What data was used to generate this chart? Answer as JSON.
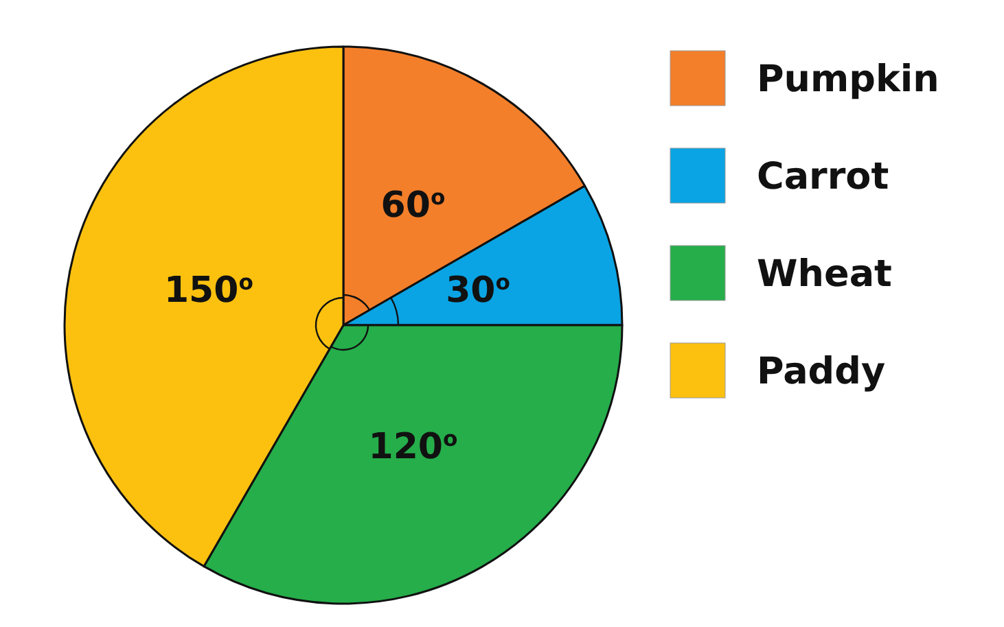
{
  "chart_data": {
    "type": "pie",
    "categories": [
      "Pumpkin",
      "Carrot",
      "Wheat",
      "Paddy"
    ],
    "values": [
      60,
      30,
      120,
      150
    ],
    "colors": [
      "#f47f2a",
      "#0aa4e4",
      "#25ae4a",
      "#fcc10f"
    ],
    "value_labels": [
      "60$^{o}$",
      "30$^{o}$",
      "120$^{o}$",
      "150$^{o}$"
    ],
    "legend": "right"
  }
}
